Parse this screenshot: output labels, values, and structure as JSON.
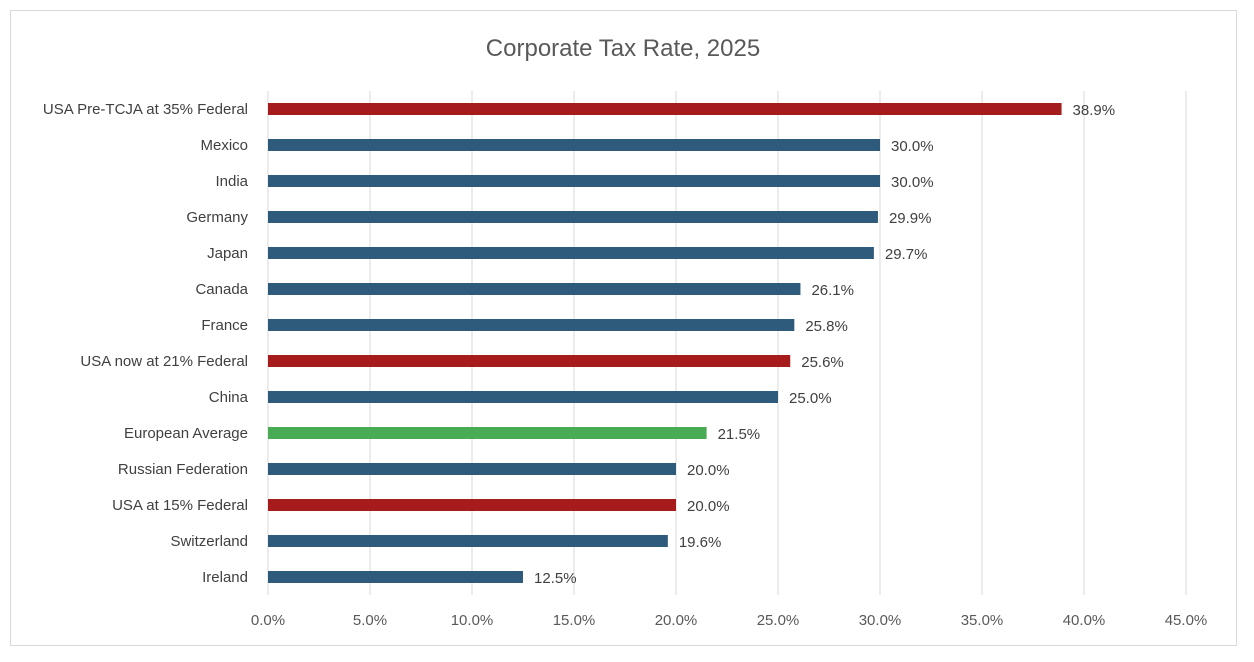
{
  "chart_data": {
    "type": "bar",
    "orientation": "horizontal",
    "title": "Corporate Tax Rate, 2025",
    "xlabel": "",
    "ylabel": "",
    "xlim": [
      0,
      45
    ],
    "x_ticks": [
      "0.0%",
      "5.0%",
      "10.0%",
      "15.0%",
      "20.0%",
      "25.0%",
      "30.0%",
      "35.0%",
      "40.0%",
      "45.0%"
    ],
    "grid": true,
    "legend": "none",
    "categories": [
      "USA Pre-TCJA at 35% Federal",
      "Mexico",
      "India",
      "Germany",
      "Japan",
      "Canada",
      "France",
      "USA now at 21% Federal",
      "China",
      "European Average",
      "Russian Federation",
      "USA at 15% Federal",
      "Switzerland",
      "Ireland"
    ],
    "values": [
      38.9,
      30.0,
      30.0,
      29.9,
      29.7,
      26.1,
      25.8,
      25.6,
      25.0,
      21.5,
      20.0,
      20.0,
      19.6,
      12.5
    ],
    "data_labels": [
      "38.9%",
      "30.0%",
      "30.0%",
      "29.9%",
      "29.7%",
      "26.1%",
      "25.8%",
      "25.6%",
      "25.0%",
      "21.5%",
      "20.0%",
      "20.0%",
      "19.6%",
      "12.5%"
    ],
    "bar_colors": [
      "#a61c1c",
      "#2e5b7c",
      "#2e5b7c",
      "#2e5b7c",
      "#2e5b7c",
      "#2e5b7c",
      "#2e5b7c",
      "#a61c1c",
      "#2e5b7c",
      "#4aab55",
      "#2e5b7c",
      "#a61c1c",
      "#2e5b7c",
      "#2e5b7c"
    ]
  }
}
